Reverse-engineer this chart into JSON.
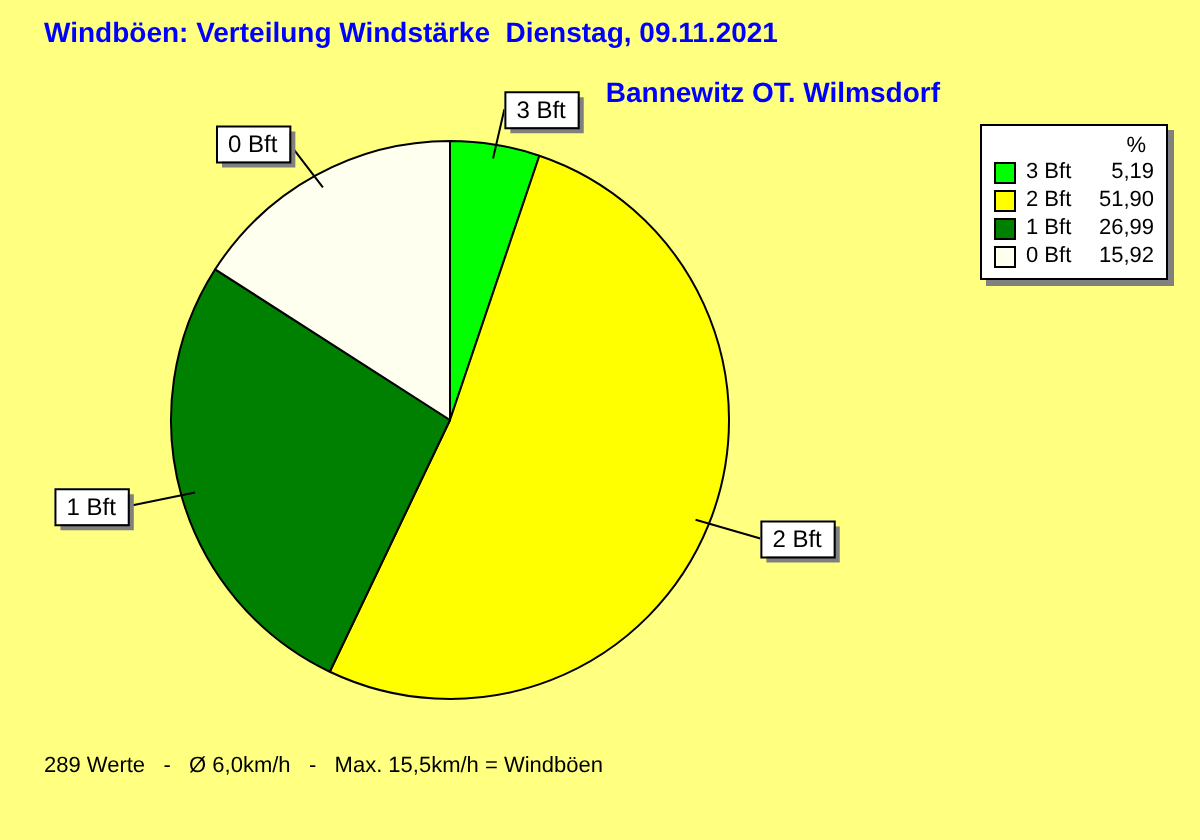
{
  "chart_data": {
    "type": "pie",
    "title": "Windböen: Verteilung Windstärke  Dienstag, 09.11.2021",
    "subtitle": "Bannewitz OT. Wilmsdorf",
    "legend_title": "%",
    "categories": [
      "3 Bft",
      "2 Bft",
      "1 Bft",
      "0 Bft"
    ],
    "values": [
      5.19,
      51.9,
      26.99,
      15.92
    ],
    "value_labels": [
      "5,19",
      "51,90",
      "26,99",
      "15,92"
    ],
    "colors": [
      "#00ff00",
      "#ffff00",
      "#008000",
      "#fffff0"
    ],
    "legend": "top right",
    "annotations": [
      "289 Werte   -   Ø 6,0km/h   -   Max. 15,5km/h = Windböen"
    ]
  }
}
